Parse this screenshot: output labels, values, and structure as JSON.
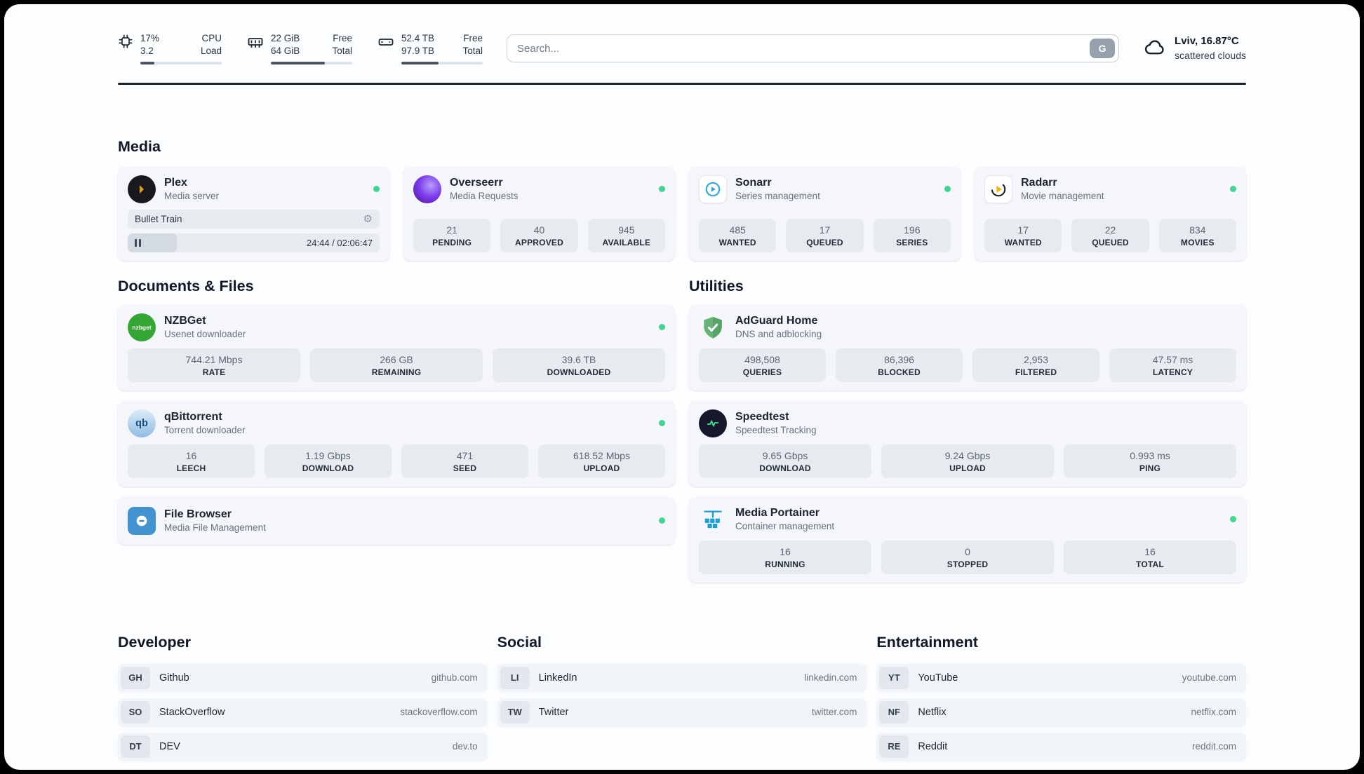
{
  "topbar": {
    "cpu": {
      "value1": "17%",
      "value2": "3.2",
      "label1": "CPU",
      "label2": "Load",
      "progress_pct": 17
    },
    "memory": {
      "value1": "22 GiB",
      "value2": "64 GiB",
      "label1": "Free",
      "label2": "Total",
      "progress_pct": 66
    },
    "disk": {
      "value1": "52.4 TB",
      "value2": "97.9 TB",
      "label1": "Free",
      "label2": "Total",
      "progress_pct": 46
    },
    "search": {
      "placeholder": "Search...",
      "button_label": "G"
    },
    "weather": {
      "location": "Lviv, 16.87°C",
      "condition": "scattered clouds"
    }
  },
  "media": {
    "title": "Media",
    "plex": {
      "name": "Plex",
      "description": "Media server",
      "now_playing": "Bullet Train",
      "time": "24:44 / 02:06:47",
      "progress_pct": 19.5
    },
    "overseerr": {
      "name": "Overseerr",
      "description": "Media Requests",
      "stats": [
        {
          "value": "21",
          "label": "PENDING"
        },
        {
          "value": "40",
          "label": "APPROVED"
        },
        {
          "value": "945",
          "label": "AVAILABLE"
        }
      ]
    },
    "sonarr": {
      "name": "Sonarr",
      "description": "Series management",
      "stats": [
        {
          "value": "485",
          "label": "WANTED"
        },
        {
          "value": "17",
          "label": "QUEUED"
        },
        {
          "value": "196",
          "label": "SERIES"
        }
      ]
    },
    "radarr": {
      "name": "Radarr",
      "description": "Movie management",
      "stats": [
        {
          "value": "17",
          "label": "WANTED"
        },
        {
          "value": "22",
          "label": "QUEUED"
        },
        {
          "value": "834",
          "label": "MOVIES"
        }
      ]
    }
  },
  "documents": {
    "title": "Documents & Files",
    "nzbget": {
      "name": "NZBGet",
      "description": "Usenet downloader",
      "icon_label": "nzbget",
      "stats": [
        {
          "value": "744.21 Mbps",
          "label": "RATE"
        },
        {
          "value": "266 GB",
          "label": "REMAINING"
        },
        {
          "value": "39.6 TB",
          "label": "DOWNLOADED"
        }
      ]
    },
    "qbittorrent": {
      "name": "qBittorrent",
      "description": "Torrent downloader",
      "icon_label": "qb",
      "stats": [
        {
          "value": "16",
          "label": "LEECH"
        },
        {
          "value": "1.19 Gbps",
          "label": "DOWNLOAD"
        },
        {
          "value": "471",
          "label": "SEED"
        },
        {
          "value": "618.52 Mbps",
          "label": "UPLOAD"
        }
      ]
    },
    "filebrowser": {
      "name": "File Browser",
      "description": "Media File Management"
    }
  },
  "utilities": {
    "title": "Utilities",
    "adguard": {
      "name": "AdGuard Home",
      "description": "DNS and adblocking",
      "stats": [
        {
          "value": "498,508",
          "label": "QUERIES"
        },
        {
          "value": "86,396",
          "label": "BLOCKED"
        },
        {
          "value": "2,953",
          "label": "FILTERED"
        },
        {
          "value": "47.57 ms",
          "label": "LATENCY"
        }
      ]
    },
    "speedtest": {
      "name": "Speedtest",
      "description": "Speedtest Tracking",
      "stats": [
        {
          "value": "9.65 Gbps",
          "label": "DOWNLOAD"
        },
        {
          "value": "9.24 Gbps",
          "label": "UPLOAD"
        },
        {
          "value": "0.993 ms",
          "label": "PING"
        }
      ]
    },
    "portainer": {
      "name": "Media Portainer",
      "description": "Container management",
      "stats": [
        {
          "value": "16",
          "label": "RUNNING"
        },
        {
          "value": "0",
          "label": "STOPPED"
        },
        {
          "value": "16",
          "label": "TOTAL"
        }
      ]
    }
  },
  "bookmarks": {
    "developer": {
      "title": "Developer",
      "items": [
        {
          "abbr": "GH",
          "name": "Github",
          "url": "github.com"
        },
        {
          "abbr": "SO",
          "name": "StackOverflow",
          "url": "stackoverflow.com"
        },
        {
          "abbr": "DT",
          "name": "DEV",
          "url": "dev.to"
        }
      ]
    },
    "social": {
      "title": "Social",
      "items": [
        {
          "abbr": "LI",
          "name": "LinkedIn",
          "url": "linkedin.com"
        },
        {
          "abbr": "TW",
          "name": "Twitter",
          "url": "twitter.com"
        }
      ]
    },
    "entertainment": {
      "title": "Entertainment",
      "items": [
        {
          "abbr": "YT",
          "name": "YouTube",
          "url": "youtube.com"
        },
        {
          "abbr": "NF",
          "name": "Netflix",
          "url": "netflix.com"
        },
        {
          "abbr": "RE",
          "name": "Reddit",
          "url": "reddit.com"
        }
      ]
    }
  }
}
